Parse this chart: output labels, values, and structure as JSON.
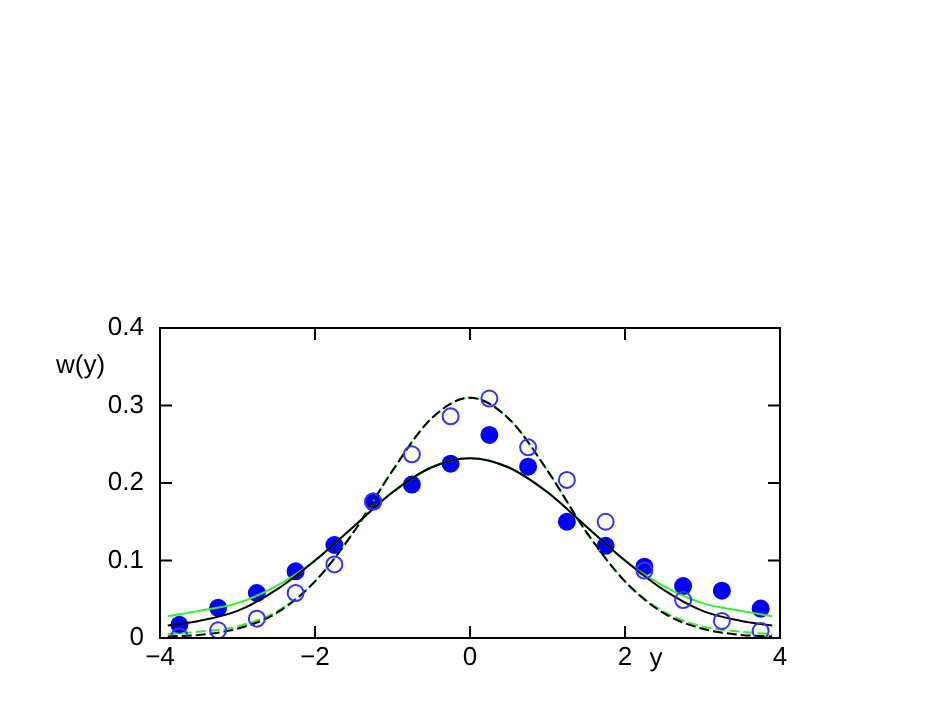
{
  "chart_data": {
    "type": "scatter",
    "xlabel": "y",
    "ylabel": "w(y)",
    "xlim": [
      -4,
      4
    ],
    "xticks": [
      {
        "value": -4,
        "label": "−4"
      },
      {
        "value": -2,
        "label": "−2"
      },
      0,
      2,
      4
    ],
    "ylim": [
      0,
      0.4
    ],
    "yticks": [
      0,
      0.1,
      0.2,
      0.3,
      0.4
    ],
    "grid": false,
    "legend": false,
    "series": [
      {
        "marker": "circle",
        "color": "#0000ff",
        "x": [
          -3.75,
          -3.25,
          -2.75,
          -2.25,
          -1.75,
          -1.25,
          -0.75,
          -0.25,
          0.25,
          0.75,
          1.25,
          1.75,
          2.25,
          2.75,
          3.25,
          3.75
        ],
        "values": [
          0.017,
          0.039,
          0.058,
          0.086,
          0.12,
          0.176,
          0.198,
          0.225,
          0.262,
          0.221,
          0.15,
          0.119,
          0.092,
          0.067,
          0.061,
          0.038
        ]
      },
      {
        "color": "#3333ff",
        "x": [
          -3.75,
          -3.25,
          -2.75,
          -2.25,
          -1.75,
          -1.25,
          -0.75,
          -0.25,
          0.25,
          0.75,
          1.25,
          1.75,
          2.25,
          2.75,
          3.25,
          3.75
        ],
        "values": [
          0.002,
          0.01,
          0.025,
          0.058,
          0.095,
          0.176,
          0.237,
          0.286,
          0.309,
          0.246,
          0.204,
          0.15,
          0.087,
          0.049,
          0.022,
          0.009
        ]
      },
      {
        "type": "line",
        "line_style": "solid",
        "color": "#000000",
        "x": [
          -3.9,
          -3.5,
          -3,
          -2.5,
          -2,
          -1.5,
          -1,
          -0.5,
          0,
          0.5,
          1,
          1.5,
          2,
          2.5,
          3,
          3.5,
          3.9
        ],
        "values": [
          0.016,
          0.022,
          0.035,
          0.062,
          0.1,
          0.144,
          0.188,
          0.22,
          0.232,
          0.22,
          0.188,
          0.144,
          0.1,
          0.062,
          0.035,
          0.022,
          0.016
        ]
      },
      {
        "type": "line",
        "line_style": "solid",
        "color": "#33ee33",
        "x": [
          -3.9,
          -3.5,
          -3,
          -2.5,
          -2,
          -1.5,
          -1,
          -0.5,
          0,
          0.5,
          1,
          1.5,
          2,
          2.5,
          3,
          3.5,
          3.9
        ],
        "values": [
          0.028,
          0.035,
          0.045,
          0.067,
          0.1,
          0.144,
          0.188,
          0.22,
          0.232,
          0.22,
          0.188,
          0.144,
          0.1,
          0.067,
          0.045,
          0.035,
          0.028
        ]
      },
      {
        "type": "line",
        "line_style": "dashed",
        "color": "#000000",
        "x": [
          -3.9,
          -3.5,
          -3,
          -2.5,
          -2,
          -1.5,
          -1,
          -0.5,
          0,
          0.5,
          1,
          1.5,
          2,
          2.5,
          3,
          3.5,
          3.9
        ],
        "values": [
          0.002,
          0.004,
          0.012,
          0.032,
          0.073,
          0.137,
          0.216,
          0.283,
          0.31,
          0.283,
          0.216,
          0.137,
          0.073,
          0.032,
          0.012,
          0.004,
          0.002
        ]
      },
      {
        "type": "line",
        "line_style": "dashed",
        "color": "#33ee33",
        "x": [
          -3.9,
          -3.5,
          -3,
          -2.5,
          -2,
          -1.5,
          -1,
          -0.5,
          0,
          0.5,
          1,
          1.5,
          2,
          2.5,
          3,
          3.5,
          3.9
        ],
        "values": [
          0.005,
          0.008,
          0.015,
          0.034,
          0.073,
          0.137,
          0.216,
          0.283,
          0.31,
          0.283,
          0.216,
          0.137,
          0.073,
          0.034,
          0.015,
          0.008,
          0.005
        ]
      }
    ]
  }
}
